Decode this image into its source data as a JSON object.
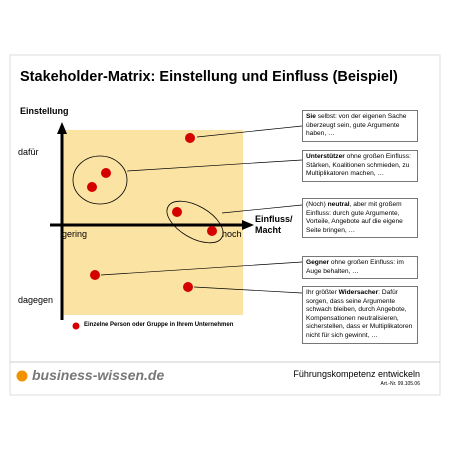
{
  "title": "Stakeholder-Matrix: Einstellung und Einfluss (Beispiel)",
  "axes": {
    "y_label": "Einstellung",
    "y_top": "dafür",
    "y_bottom": "dagegen",
    "x_left": "gering",
    "x_right": "hoch",
    "x_label": "Einfluss/ Macht"
  },
  "legend": "Einzelne Person oder Gruppe in Ihrem Unternehmen",
  "notes": [
    {
      "parts": [
        {
          "text": "Sie",
          "bold": true
        },
        {
          "text": " selbst: von der eigenen Sache überzeugt sein, gute Argumente haben, …",
          "bold": false
        }
      ]
    },
    {
      "parts": [
        {
          "text": "Unterstützer",
          "bold": true
        },
        {
          "text": " ohne großen Einfluss: Stärken, Koalitionen schmieden, zu Multiplikatoren machen, …",
          "bold": false
        }
      ]
    },
    {
      "parts": [
        {
          "text": "(Noch) ",
          "bold": false
        },
        {
          "text": "neutral",
          "bold": true
        },
        {
          "text": ", aber mit großem Einfluss: durch gute Argumente, Vorteile, Angebote auf die eigene Seite bringen, …",
          "bold": false
        }
      ]
    },
    {
      "parts": [
        {
          "text": "Gegner",
          "bold": true
        },
        {
          "text": " ohne großen Einfluss: im Auge behalten, …",
          "bold": false
        }
      ]
    },
    {
      "parts": [
        {
          "text": "Ihr größter ",
          "bold": false
        },
        {
          "text": "Widersacher",
          "bold": true
        },
        {
          "text": ": Dafür sorgen, dass seine Argumente schwach bleiben, durch Angebote, Kompensationen neutralisieren, sicherstellen, dass er Multiplikatoren nicht für sich gewinnt, …",
          "bold": false
        }
      ]
    }
  ],
  "footer": {
    "logo": "business-wissen.de",
    "tagline": "Führungskompetenz entwickeln",
    "article": "Art.-Nr. 99.105.06"
  }
}
